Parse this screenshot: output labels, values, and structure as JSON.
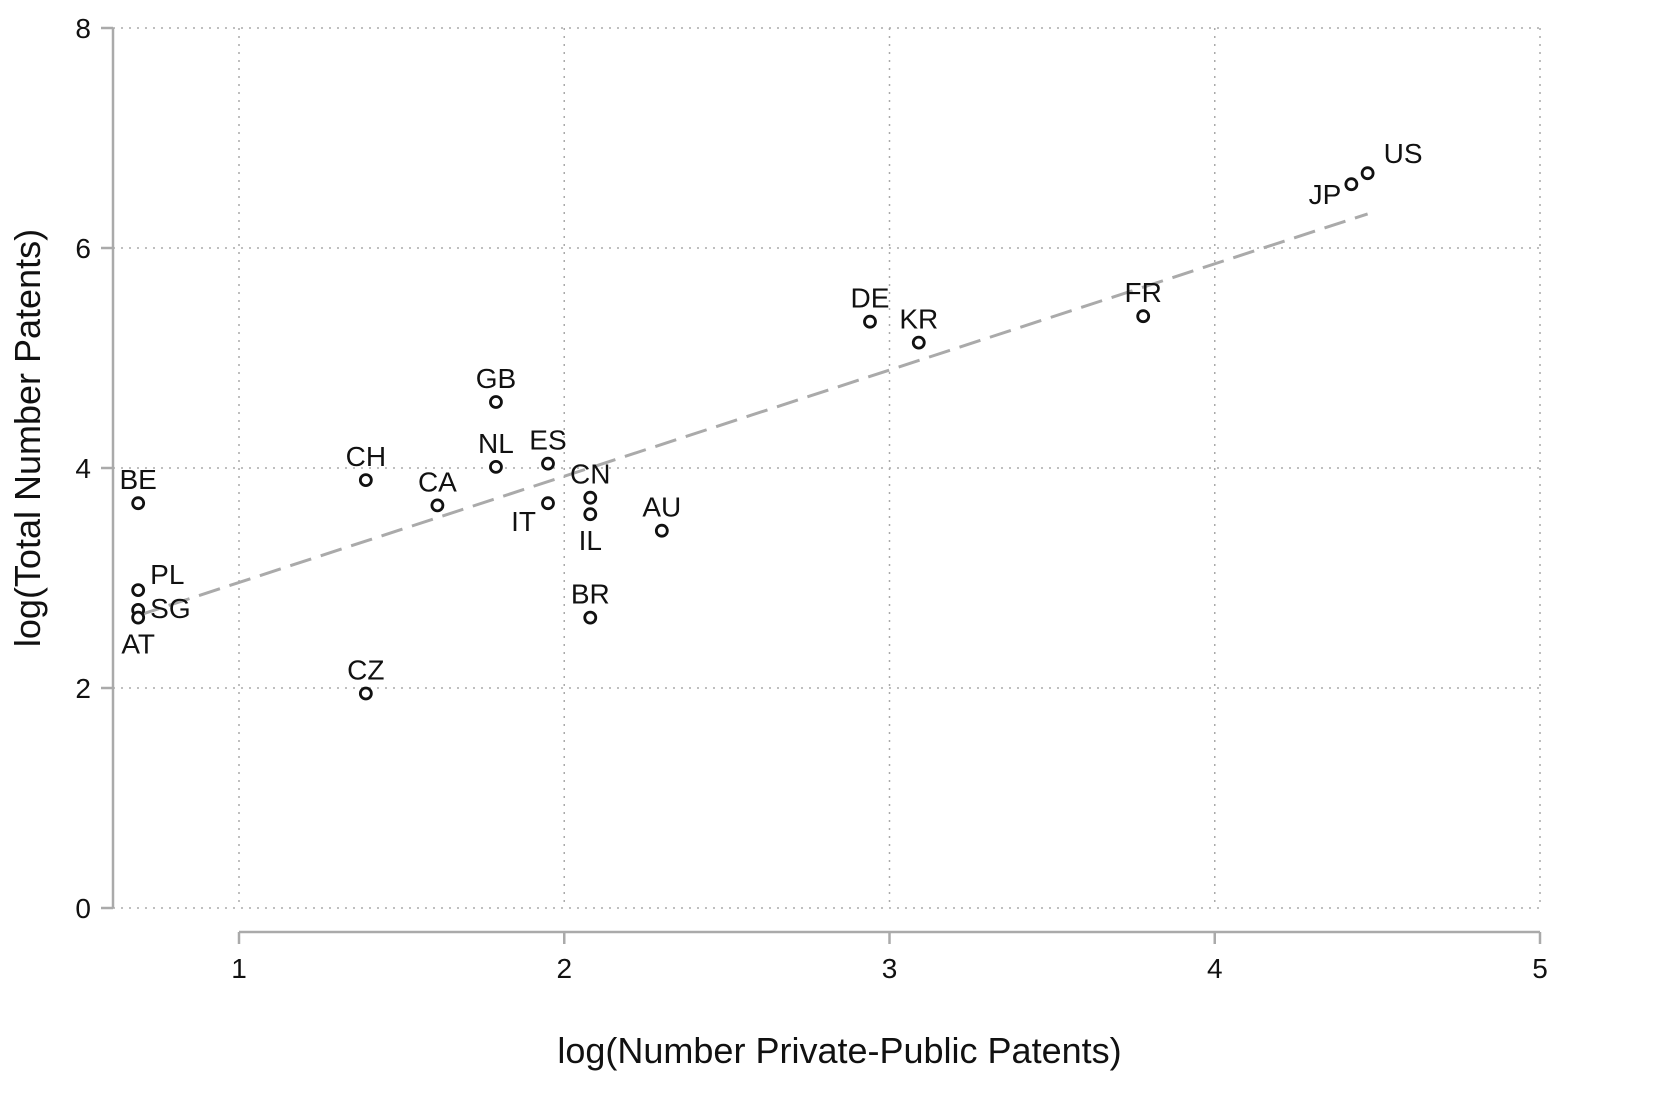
{
  "chart_data": {
    "type": "scatter",
    "title": "",
    "xlabel": "log(Number Private-Public Patents)",
    "ylabel": "log(Total Number Patents)",
    "xlim": [
      0.62,
      5.0
    ],
    "ylim": [
      0,
      8
    ],
    "xticks": [
      1,
      2,
      3,
      4,
      5
    ],
    "yticks": [
      0,
      2,
      4,
      6,
      8
    ],
    "xtick_labels": [
      "1",
      "2",
      "3",
      "4",
      "5"
    ],
    "ytick_labels": [
      "0",
      "2",
      "4",
      "6",
      "8"
    ],
    "grid": true,
    "points": [
      {
        "label": "US",
        "x": 4.47,
        "y": 6.68
      },
      {
        "label": "JP",
        "x": 4.42,
        "y": 6.58
      },
      {
        "label": "FR",
        "x": 3.78,
        "y": 5.38
      },
      {
        "label": "DE",
        "x": 2.94,
        "y": 5.33
      },
      {
        "label": "KR",
        "x": 3.09,
        "y": 5.14
      },
      {
        "label": "GB",
        "x": 1.79,
        "y": 4.6
      },
      {
        "label": "ES",
        "x": 1.95,
        "y": 4.04
      },
      {
        "label": "NL",
        "x": 1.79,
        "y": 4.01
      },
      {
        "label": "CH",
        "x": 1.39,
        "y": 3.89
      },
      {
        "label": "CN",
        "x": 2.08,
        "y": 3.73
      },
      {
        "label": "BE",
        "x": 0.69,
        "y": 3.68
      },
      {
        "label": "IT",
        "x": 1.95,
        "y": 3.68
      },
      {
        "label": "CA",
        "x": 1.61,
        "y": 3.66
      },
      {
        "label": "IL",
        "x": 2.08,
        "y": 3.58
      },
      {
        "label": "AU",
        "x": 2.3,
        "y": 3.43
      },
      {
        "label": "PL",
        "x": 0.69,
        "y": 2.89
      },
      {
        "label": "SG",
        "x": 0.69,
        "y": 2.71
      },
      {
        "label": "AT",
        "x": 0.69,
        "y": 2.64
      },
      {
        "label": "BR",
        "x": 2.08,
        "y": 2.64
      },
      {
        "label": "CZ",
        "x": 1.39,
        "y": 1.95
      }
    ],
    "fit_line": {
      "x": [
        0.69,
        4.47
      ],
      "y": [
        2.66,
        6.31
      ],
      "style": "dashed",
      "color": "#aaaaaa"
    },
    "marker": {
      "shape": "hollow-circle",
      "color": "#111111"
    },
    "axis_color": "#aaaaaa",
    "grid_color": "#aaaaaa"
  }
}
